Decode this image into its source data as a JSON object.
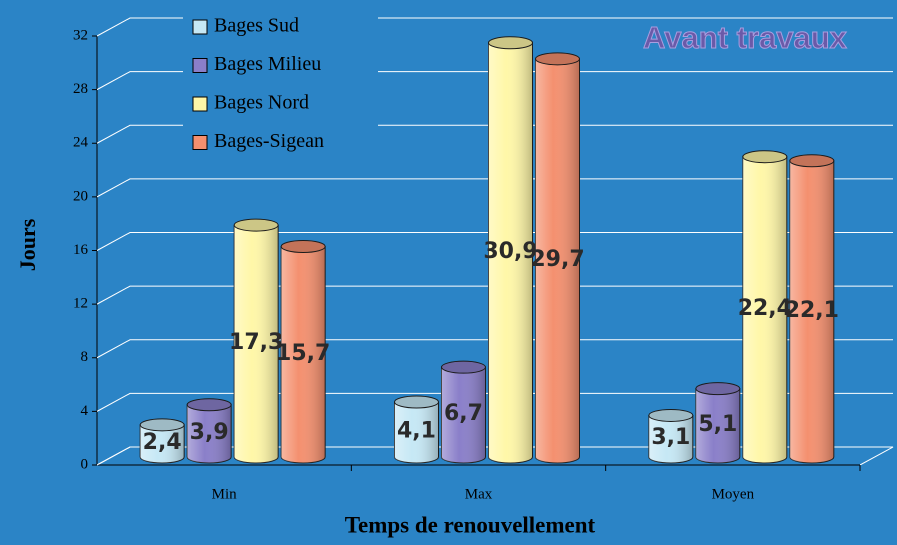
{
  "chart_data": {
    "type": "bar",
    "title": "Avant travaux",
    "x_label": "Temps de renouvellement",
    "y_label": "Jours",
    "categories": [
      "Min",
      "Max",
      "Moyen"
    ],
    "series": [
      {
        "name": "Bages Sud",
        "color": "#c6e8f5",
        "values": [
          2.4,
          4.1,
          3.1
        ],
        "value_labels": [
          "2,4",
          "4,1",
          "3,1"
        ]
      },
      {
        "name": "Bages Milieu",
        "color": "#8a7fc9",
        "values": [
          3.9,
          6.7,
          5.1
        ],
        "value_labels": [
          "3,9",
          "6,7",
          "5,1"
        ]
      },
      {
        "name": "Bages Nord",
        "color": "#fff7a8",
        "values": [
          17.3,
          30.9,
          22.4
        ],
        "value_labels": [
          "17,3",
          "30,9",
          "22,4"
        ]
      },
      {
        "name": "Bages-Sigean",
        "color": "#f4906f",
        "values": [
          15.7,
          29.7,
          22.1
        ],
        "value_labels": [
          "15,7",
          "29,7",
          "22,1"
        ]
      }
    ],
    "ylim": [
      0,
      32
    ],
    "yticks": [
      0,
      4,
      8,
      12,
      16,
      20,
      24,
      28,
      32
    ],
    "grid": true,
    "legend": "top-left"
  }
}
